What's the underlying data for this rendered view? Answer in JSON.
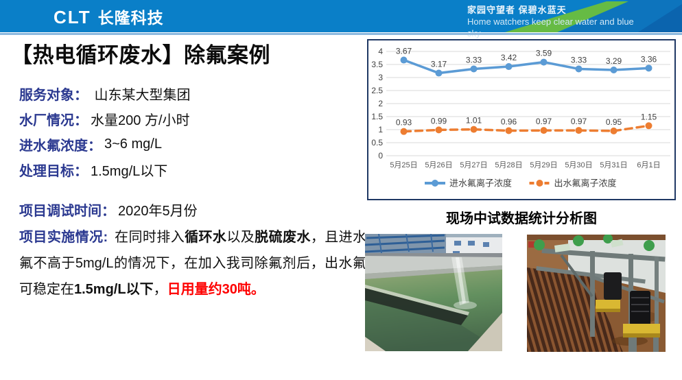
{
  "header": {
    "logo_abbr": "CLT",
    "logo_name": "长隆科技",
    "slogan_cn": "家园守望者 保碧水蓝天",
    "slogan_en": "Home watchers keep clear water and blue sky",
    "colors": {
      "bar_blue": "#0a7fc8",
      "accent_green": "#66bb44",
      "corner_dark_blue": "#0b64ae"
    }
  },
  "title": "【热电循环废水】除氟案例",
  "info": [
    {
      "label": "服务对象：",
      "value": " 山东某大型集团"
    },
    {
      "label": "水厂情况：",
      "value": "水量200 方/小时"
    },
    {
      "label": "进水氟浓度：",
      "value": "3~6 mg/L"
    },
    {
      "label": "处理目标：",
      "value": "1.5mg/L以下"
    },
    {
      "label": "项目调试时间：",
      "value": "2020年5月份"
    }
  ],
  "implementation": {
    "label": "项目实施情况:",
    "seg1": " 在同时排入",
    "bold1": "循环水",
    "seg2": "以及",
    "bold2": "脱硫废水",
    "seg3": "，且进水氟不高于5mg/L的情况下，在加入我司除氟剂后，出水氟可稳定在",
    "bold3": "1.5mg/L以下",
    "seg4": "，",
    "red": "日用量约30吨。"
  },
  "chart_caption": "现场中试数据统计分析图",
  "text_colors": {
    "label_navy": "#2b3990",
    "highlight_red": "#fe0000"
  },
  "chart_data": {
    "type": "line",
    "categories": [
      "5月25日",
      "5月26日",
      "5月27日",
      "5月28日",
      "5月29日",
      "5月30日",
      "5月31日",
      "6月1日"
    ],
    "series": [
      {
        "name": "进水氟离子浓度",
        "values": [
          3.67,
          3.17,
          3.33,
          3.42,
          3.59,
          3.33,
          3.29,
          3.36
        ],
        "color": "#5b9bd5",
        "style": "solid"
      },
      {
        "name": "出水氟离子浓度",
        "values": [
          0.93,
          0.99,
          1.01,
          0.96,
          0.97,
          0.97,
          0.95,
          1.15
        ],
        "color": "#ed7d31",
        "style": "dashed"
      }
    ],
    "ylim": [
      0,
      4
    ],
    "ytick_step": 0.5,
    "grid": true,
    "data_labels": true,
    "legend_position": "bottom",
    "gridline_color": "#d9d9d9",
    "tick_label_color": "#404040",
    "xtick_label_color": "#595959"
  }
}
